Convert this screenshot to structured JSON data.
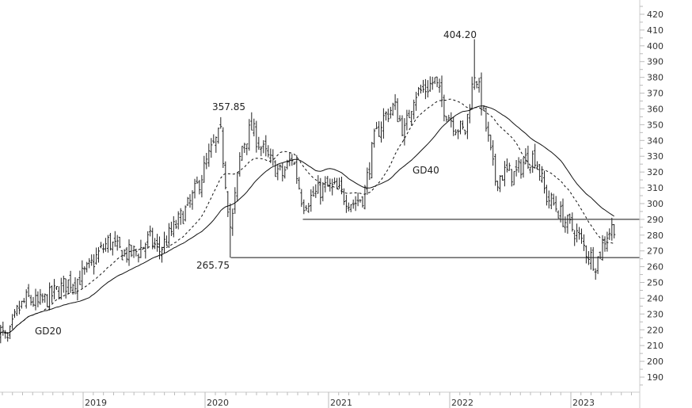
{
  "chart_data": {
    "type": "ohlc",
    "frequency": "weekly",
    "ylim": [
      185,
      425
    ],
    "yticks": [
      190,
      200,
      210,
      220,
      230,
      240,
      250,
      260,
      270,
      280,
      290,
      300,
      310,
      320,
      330,
      340,
      350,
      360,
      370,
      380,
      390,
      400,
      410,
      420
    ],
    "xticks": [
      "2019",
      "2020",
      "2021",
      "2022",
      "2023"
    ],
    "grid": false,
    "monthly_close": {
      "months": [
        "2018-04",
        "2018-05",
        "2018-06",
        "2018-07",
        "2018-08",
        "2018-09",
        "2018-10",
        "2018-11",
        "2018-12",
        "2019-01",
        "2019-02",
        "2019-03",
        "2019-04",
        "2019-05",
        "2019-06",
        "2019-07",
        "2019-08",
        "2019-09",
        "2019-10",
        "2019-11",
        "2019-12",
        "2020-01",
        "2020-02",
        "2020-03",
        "2020-04",
        "2020-05",
        "2020-06",
        "2020-07",
        "2020-08",
        "2020-09",
        "2020-10",
        "2020-11",
        "2020-12",
        "2021-01",
        "2021-02",
        "2021-03",
        "2021-04",
        "2021-05",
        "2021-06",
        "2021-07",
        "2021-08",
        "2021-09",
        "2021-10",
        "2021-11",
        "2021-12",
        "2022-01",
        "2022-02",
        "2022-03",
        "2022-04",
        "2022-05",
        "2022-06",
        "2022-07",
        "2022-08",
        "2022-09",
        "2022-10",
        "2022-11",
        "2022-12",
        "2023-01",
        "2023-02",
        "2023-03",
        "2023-04",
        "2023-05"
      ],
      "values": [
        222,
        212,
        232,
        240,
        236,
        240,
        245,
        250,
        252,
        258,
        268,
        276,
        270,
        268,
        270,
        278,
        270,
        280,
        290,
        300,
        315,
        332,
        345,
        282,
        335,
        348,
        335,
        325,
        318,
        330,
        300,
        305,
        310,
        310,
        305,
        300,
        305,
        340,
        355,
        362,
        345,
        370,
        372,
        378,
        360,
        350,
        345,
        385,
        352,
        315,
        320,
        318,
        328,
        330,
        305,
        298,
        288,
        282,
        270,
        262,
        280,
        288
      ]
    },
    "moving_averages": [
      {
        "name": "GD20",
        "period": 20,
        "style": "dashed"
      },
      {
        "name": "GD40",
        "period": 40,
        "style": "solid"
      }
    ],
    "annotations": [
      {
        "label": "357.85",
        "value": 357.85,
        "date": "2020-05",
        "kind": "high"
      },
      {
        "label": "404.20",
        "value": 404.2,
        "date": "2022-03",
        "kind": "high"
      },
      {
        "label": "265.75",
        "value": 265.75,
        "date": "2020-03",
        "kind": "low"
      },
      {
        "label": "GD20",
        "kind": "series-label"
      },
      {
        "label": "GD40",
        "kind": "series-label"
      }
    ],
    "horizontal_lines": [
      {
        "value": 290,
        "from": "2020-10"
      },
      {
        "value": 265.75,
        "from": "2020-03"
      }
    ],
    "colors": {
      "bars": "#222222",
      "lines": "#111111",
      "axis": "#cccccc",
      "text": "#333333"
    }
  }
}
